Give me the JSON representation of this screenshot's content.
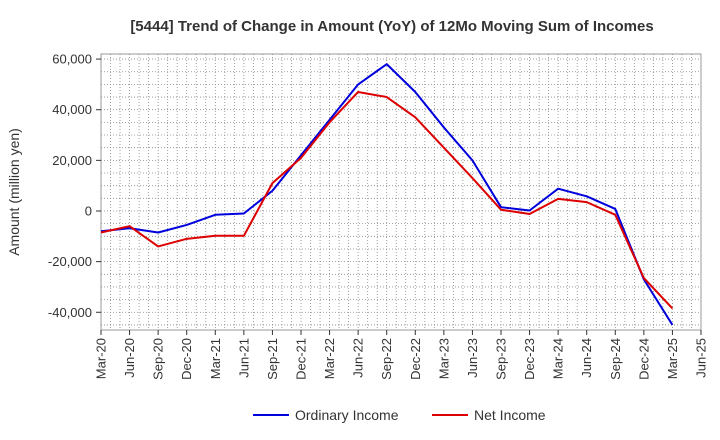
{
  "chart_data": {
    "type": "line",
    "title": "[5444]  Trend of Change in Amount (YoY) of 12Mo Moving Sum of Incomes",
    "xlabel": "",
    "ylabel": "Amount (million yen)",
    "categories": [
      "Mar-20",
      "Jun-20",
      "Sep-20",
      "Dec-20",
      "Mar-21",
      "Jun-21",
      "Sep-21",
      "Dec-21",
      "Mar-22",
      "Jun-22",
      "Sep-22",
      "Dec-22",
      "Mar-23",
      "Jun-23",
      "Sep-23",
      "Dec-23",
      "Mar-24",
      "Jun-24",
      "Sep-24",
      "Dec-24",
      "Mar-25",
      "Jun-25"
    ],
    "ylim": [
      -47000,
      62000
    ],
    "yticks": [
      -40000,
      -20000,
      0,
      20000,
      40000,
      60000
    ],
    "ytick_labels": [
      "-40,000",
      "-20,000",
      "0",
      "20,000",
      "40,000",
      "60,000"
    ],
    "grid": true,
    "legend_position": "bottom",
    "series": [
      {
        "name": "Ordinary Income",
        "color": "#0000dd",
        "values": [
          -8000,
          -6800,
          -8500,
          -5500,
          -1500,
          -1000,
          8000,
          22000,
          36000,
          50000,
          58000,
          47000,
          33000,
          20000,
          1500,
          200,
          8800,
          5800,
          800,
          -27000,
          -45000,
          null
        ]
      },
      {
        "name": "Net Income",
        "color": "#dd0000",
        "values": [
          -8500,
          -6000,
          -14000,
          -11000,
          -9800,
          -9800,
          11000,
          21000,
          35000,
          47000,
          45000,
          37000,
          25000,
          13000,
          500,
          -1200,
          4800,
          3500,
          -1500,
          -26500,
          -38500,
          null
        ]
      }
    ]
  }
}
